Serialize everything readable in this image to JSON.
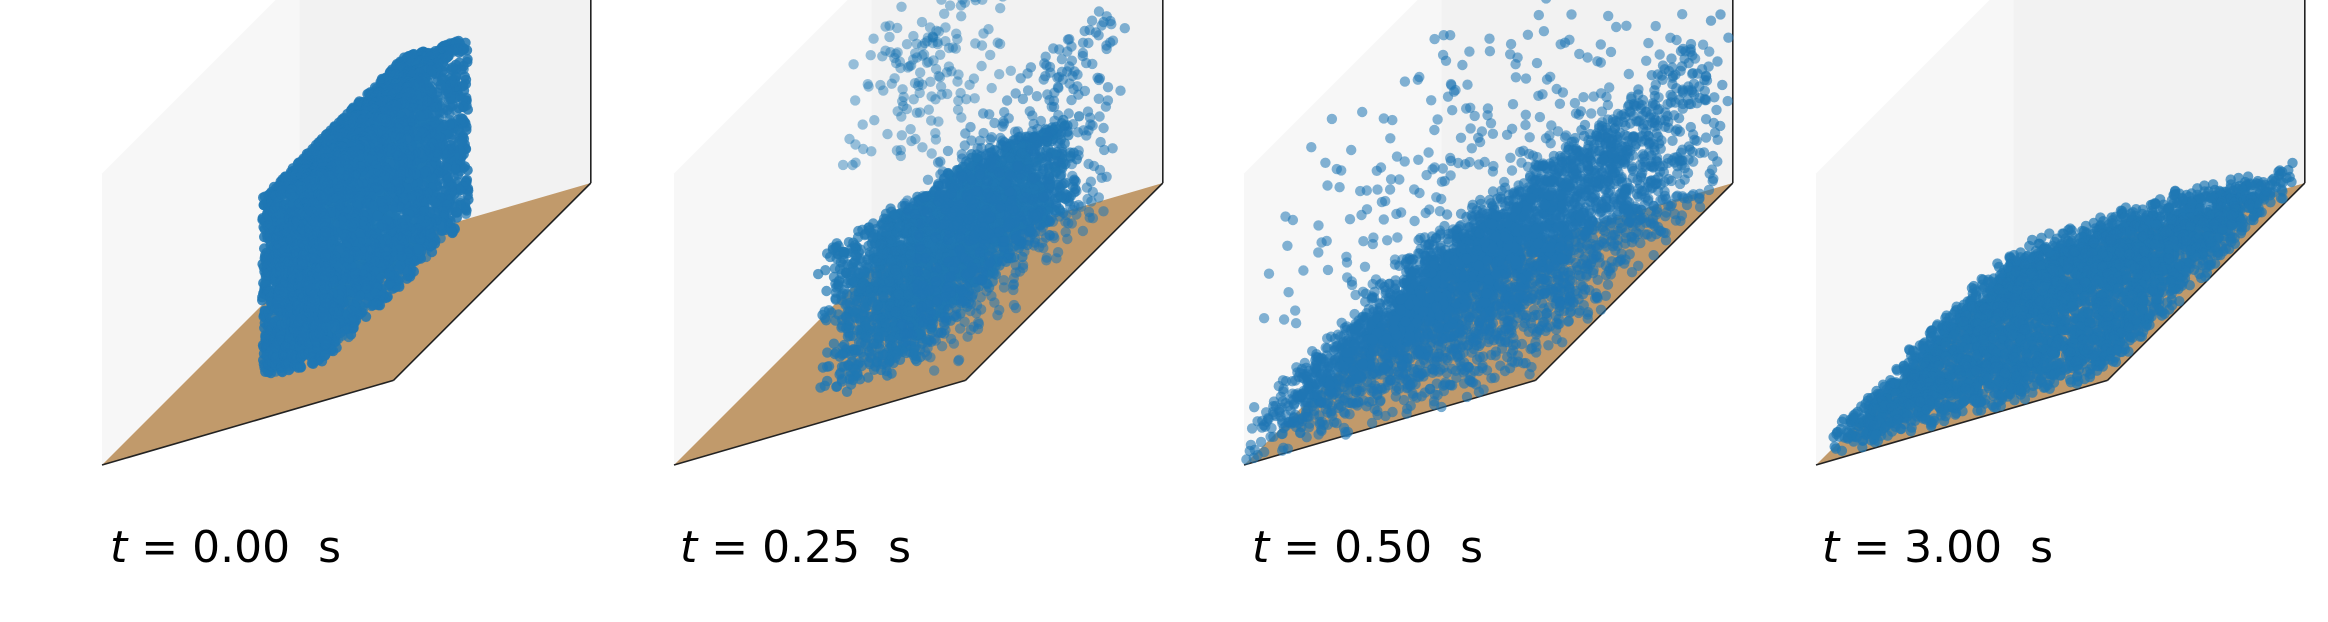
{
  "figure": {
    "panels": [
      {
        "id": "p0",
        "time_var": "t",
        "time_value": "0.00",
        "time_unit": "s",
        "state": "initial-block"
      },
      {
        "id": "p1",
        "time_var": "t",
        "time_value": "0.25",
        "time_unit": "s",
        "state": "collapsing"
      },
      {
        "id": "p2",
        "time_var": "t",
        "time_value": "0.50",
        "time_unit": "s",
        "state": "splashing"
      },
      {
        "id": "p3",
        "time_var": "t",
        "time_value": "3.00",
        "time_unit": "s",
        "state": "settled-layer"
      }
    ]
  },
  "colors": {
    "particle": "#1f77b4",
    "floor": "#c19a6b",
    "pane_back": "#f2f2f2",
    "pane_left": "#f7f7f7",
    "edge": "#222222"
  }
}
